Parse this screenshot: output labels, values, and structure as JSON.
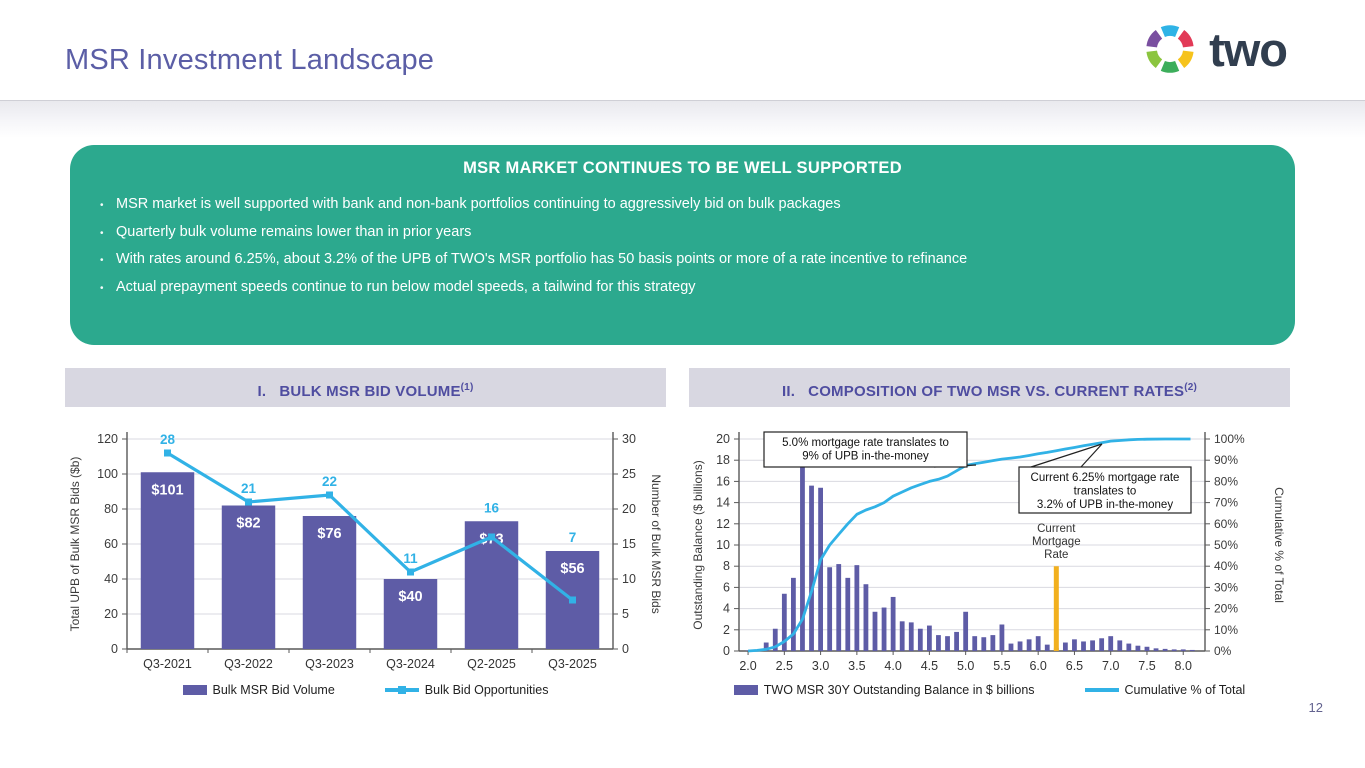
{
  "header": {
    "title": "MSR Investment Landscape",
    "logo_text": "two"
  },
  "key_points": {
    "title": "MSR MARKET CONTINUES TO BE WELL SUPPORTED",
    "bullets": [
      "MSR market is well supported with bank and non-bank portfolios continuing to aggressively bid on bulk packages",
      "Quarterly bulk volume remains lower than in prior years",
      "With rates around 6.25%, about 3.2% of the UPB of TWO's MSR portfolio has 50 basis points or more of a rate incentive to refinance",
      "Actual prepayment speeds continue to run below model speeds, a tailwind for this strategy"
    ]
  },
  "footer": {
    "page_number": "12"
  },
  "colors": {
    "accent_purple": "#5b5ea6",
    "bar_purple": "#5e5ca6",
    "line_cyan": "#31b2e6",
    "green_panel": "#2ca98e",
    "panel_header_bg": "#d8d7e1",
    "panel_header_text": "#4f4da0",
    "marker_orange": "#f2b01e",
    "logo_navy": "#313e4f",
    "axis_gray": "#595959",
    "grid_gray": "#d9d9e0"
  },
  "chart_data": [
    {
      "type": "bar",
      "title": "I.   BULK MSR BID VOLUME",
      "footnote_ref": "(1)",
      "categories": [
        "Q3-2021",
        "Q3-2022",
        "Q3-2023",
        "Q3-2024",
        "Q2-2025",
        "Q3-2025"
      ],
      "series": [
        {
          "name": "Bulk MSR Bid Volume",
          "type": "bar",
          "axis": "left",
          "values": [
            101,
            82,
            76,
            40,
            73,
            56
          ],
          "labels": [
            "$101",
            "$82",
            "$76",
            "$40",
            "$73",
            "$56"
          ]
        },
        {
          "name": "Bulk Bid Opportunities",
          "type": "line",
          "axis": "right",
          "values": [
            28,
            21,
            22,
            11,
            16,
            7
          ]
        }
      ],
      "left_axis": {
        "label": "Total UPB of Bulk MSR Bids ($b)",
        "min": 0,
        "max": 120,
        "step": 20
      },
      "right_axis": {
        "label": "Number of Bulk MSR Bids",
        "min": 0,
        "max": 30,
        "step": 5
      },
      "grid": true,
      "legend_position": "bottom",
      "legend": [
        {
          "swatch": "rect",
          "label": "Bulk MSR Bid Volume"
        },
        {
          "swatch": "line-marker",
          "label": "Bulk Bid Opportunities"
        }
      ]
    },
    {
      "type": "histogram-line",
      "title": "II.   COMPOSITION OF TWO MSR VS. CURRENT RATES",
      "footnote_ref": "(2)",
      "bar_series_name": "TWO MSR 30Y Outstanding Balance in $ billions",
      "x_start": 2.0,
      "x_step": 0.125,
      "bar_values": [
        0.05,
        0.1,
        0.8,
        2.1,
        5.4,
        6.9,
        17.7,
        15.6,
        15.4,
        7.9,
        8.2,
        6.9,
        8.1,
        6.3,
        3.7,
        4.1,
        5.1,
        2.8,
        2.7,
        2.1,
        2.4,
        1.5,
        1.4,
        1.8,
        3.7,
        1.4,
        1.3,
        1.5,
        2.5,
        0.7,
        0.9,
        1.1,
        1.4,
        0.6,
        0.3,
        0.8,
        1.1,
        0.9,
        1.0,
        1.2,
        1.4,
        1.0,
        0.7,
        0.5,
        0.4,
        0.25,
        0.2,
        0.15,
        0.15,
        0.1
      ],
      "cumulative": {
        "name": "Cumulative % of Total",
        "points": [
          [
            2.0,
            0
          ],
          [
            2.125,
            0.3
          ],
          [
            2.25,
            0.8
          ],
          [
            2.375,
            2
          ],
          [
            2.5,
            4.5
          ],
          [
            2.625,
            8
          ],
          [
            2.75,
            15
          ],
          [
            2.875,
            28
          ],
          [
            3.0,
            43
          ],
          [
            3.125,
            50
          ],
          [
            3.25,
            55
          ],
          [
            3.375,
            60
          ],
          [
            3.5,
            64.5
          ],
          [
            3.625,
            66.5
          ],
          [
            3.75,
            68
          ],
          [
            3.875,
            70
          ],
          [
            4.0,
            73
          ],
          [
            4.125,
            75
          ],
          [
            4.25,
            77
          ],
          [
            4.375,
            78.5
          ],
          [
            4.5,
            80
          ],
          [
            4.625,
            81
          ],
          [
            4.75,
            82.5
          ],
          [
            4.875,
            85
          ],
          [
            5.0,
            87.5
          ],
          [
            5.125,
            88.3
          ],
          [
            5.25,
            89
          ],
          [
            5.375,
            89.8
          ],
          [
            5.5,
            90.5
          ],
          [
            5.625,
            91
          ],
          [
            5.75,
            91.5
          ],
          [
            5.875,
            92.2
          ],
          [
            6.0,
            93
          ],
          [
            6.125,
            93.7
          ],
          [
            6.25,
            94.5
          ],
          [
            6.375,
            95.3
          ],
          [
            6.5,
            96
          ],
          [
            6.625,
            96.8
          ],
          [
            6.75,
            97.5
          ],
          [
            6.875,
            98.2
          ],
          [
            7.0,
            99
          ],
          [
            7.125,
            99.3
          ],
          [
            7.25,
            99.6
          ],
          [
            7.375,
            99.8
          ],
          [
            7.5,
            99.9
          ],
          [
            7.75,
            100
          ],
          [
            8.0,
            100
          ],
          [
            8.1,
            100
          ]
        ]
      },
      "left_axis": {
        "label": "Outstanding Balance ($ billions)",
        "min": 0,
        "max": 20,
        "step": 2
      },
      "right_axis": {
        "label": "Cumulative % of Total",
        "min": 0,
        "max": 100,
        "step": 10,
        "suffix": "%"
      },
      "x_axis": {
        "min": 2.0,
        "max": 8.0,
        "step": 0.5
      },
      "annotations": [
        {
          "lines": [
            "5.0% mortgage rate translates to",
            "9% of UPB in-the-money"
          ],
          "points_to_x": 5.0
        },
        {
          "lines": [
            "Current 6.25% mortgage rate",
            "translates to",
            "3.2% of UPB in-the-money"
          ],
          "points_to_x": 6.25
        }
      ],
      "rate_marker": {
        "x": 6.25,
        "label_lines": [
          "Current",
          "Mortgage",
          "Rate"
        ],
        "height_value": 8
      },
      "grid": true,
      "legend_position": "bottom",
      "legend": [
        {
          "swatch": "rect",
          "label": "TWO MSR 30Y Outstanding Balance in $ billions"
        },
        {
          "swatch": "line",
          "label": "Cumulative % of Total"
        }
      ]
    }
  ]
}
